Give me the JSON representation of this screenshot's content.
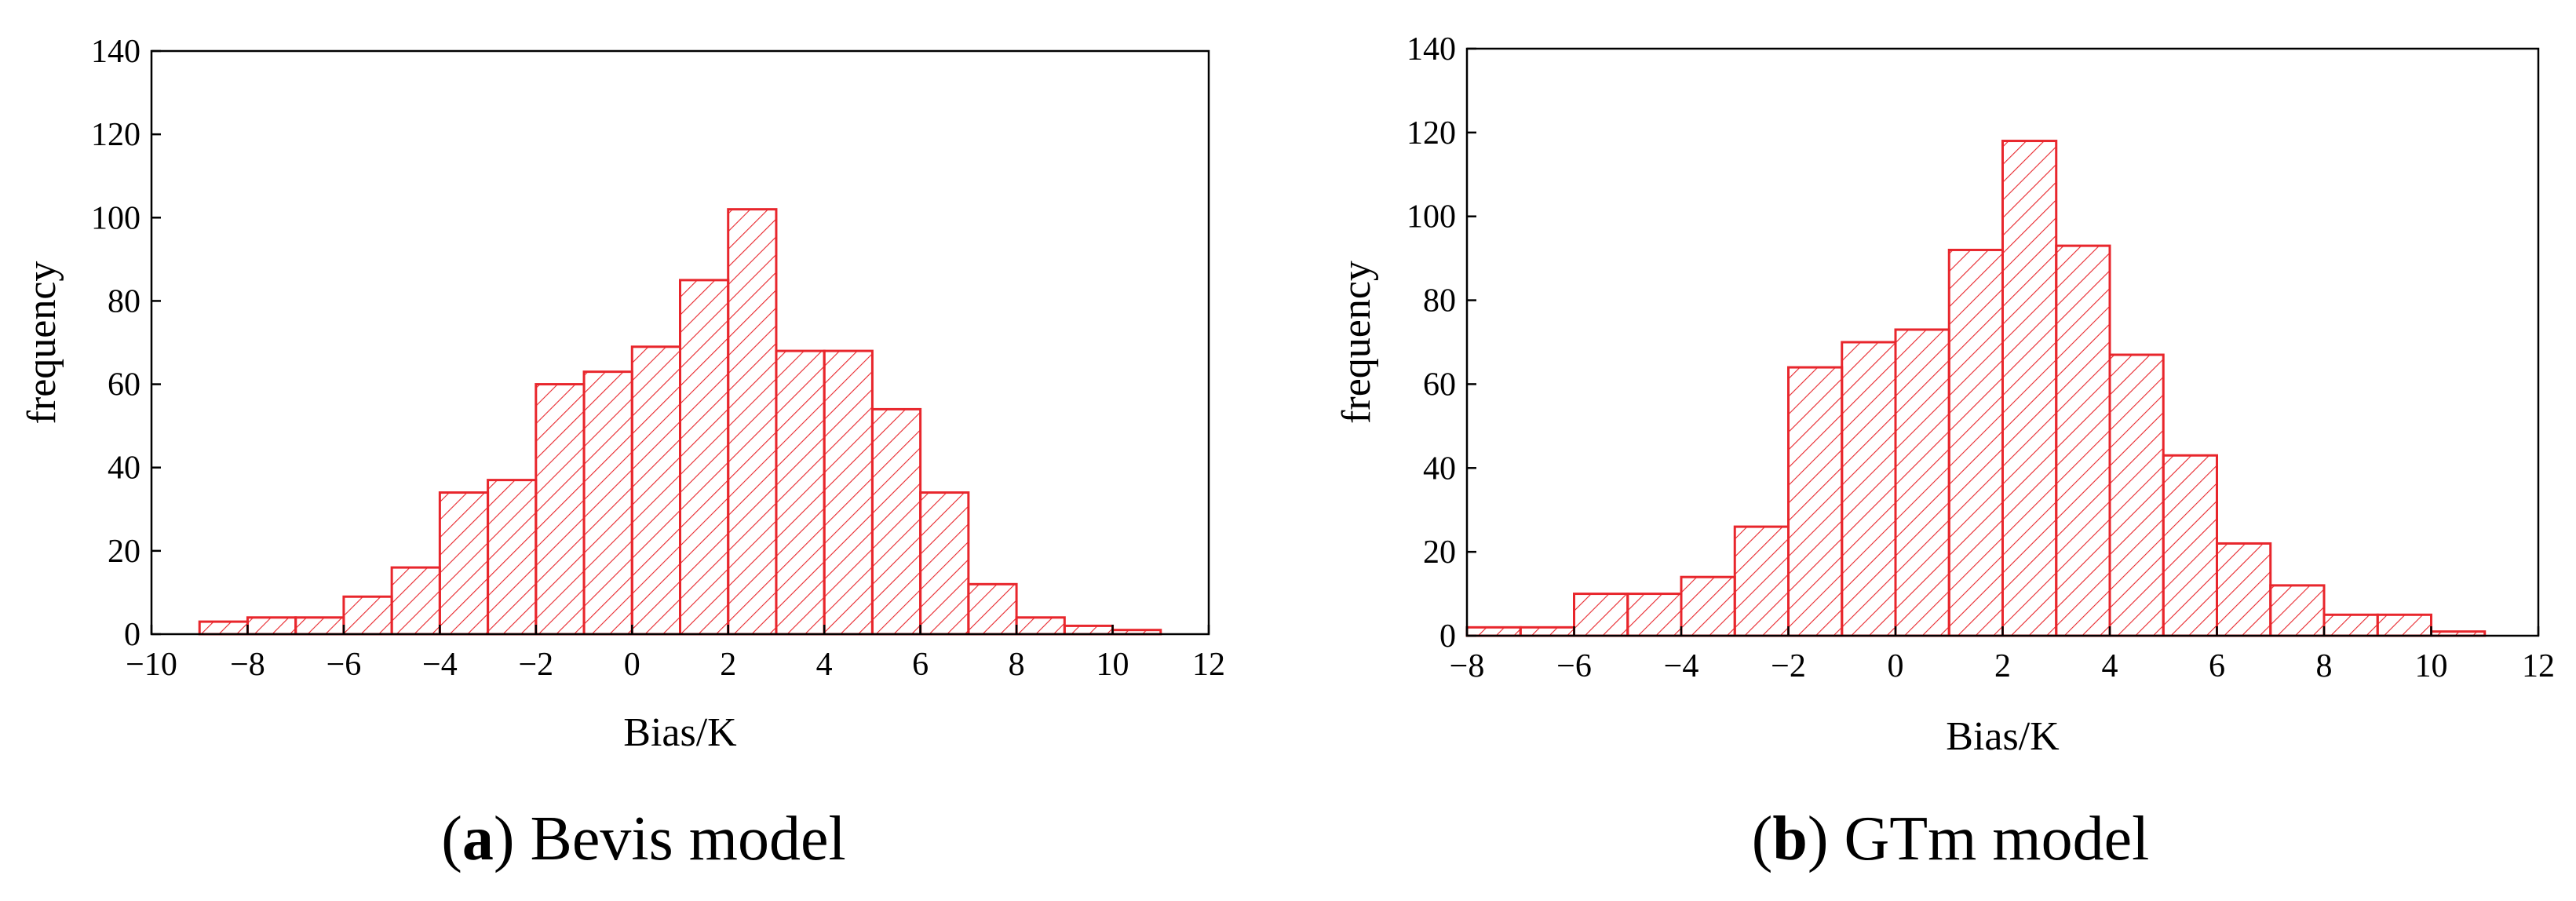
{
  "chart_data": [
    {
      "type": "bar",
      "id": "a",
      "caption_letter": "a",
      "caption_text": "Bevis model",
      "title": "",
      "xlabel": "Bias/K",
      "ylabel": "frequency",
      "xlim": [
        -10,
        12
      ],
      "ylim": [
        0,
        140
      ],
      "xticks": [
        -10,
        -8,
        -6,
        -4,
        -2,
        0,
        2,
        4,
        6,
        8,
        10,
        12
      ],
      "xtick_labels": [
        "−10",
        "−8",
        "−6",
        "−4",
        "−2",
        "0",
        "2",
        "4",
        "6",
        "8",
        "10",
        "12"
      ],
      "yticks": [
        0,
        20,
        40,
        60,
        80,
        100,
        120,
        140
      ],
      "ytick_labels": [
        "0",
        "20",
        "40",
        "60",
        "80",
        "100",
        "120",
        "140"
      ],
      "bin_width": 1,
      "bin_starts": [
        -9,
        -8,
        -7,
        -6,
        -5,
        -4,
        -3,
        -2,
        -1,
        0,
        1,
        2,
        3,
        4,
        5,
        6,
        7,
        8,
        9,
        10
      ],
      "values": [
        3,
        4,
        4,
        9,
        16,
        34,
        37,
        60,
        63,
        69,
        85,
        102,
        68,
        68,
        54,
        34,
        12,
        4,
        2,
        1
      ],
      "color": "#e8262c"
    },
    {
      "type": "bar",
      "id": "b",
      "caption_letter": "b",
      "caption_text": "GTm model",
      "title": "",
      "xlabel": "Bias/K",
      "ylabel": "frequency",
      "xlim": [
        -8,
        12
      ],
      "ylim": [
        0,
        140
      ],
      "xticks": [
        -8,
        -6,
        -4,
        -2,
        0,
        2,
        4,
        6,
        8,
        10,
        12
      ],
      "xtick_labels": [
        "−8",
        "−6",
        "−4",
        "−2",
        "0",
        "2",
        "4",
        "6",
        "8",
        "10",
        "12"
      ],
      "yticks": [
        0,
        20,
        40,
        60,
        80,
        100,
        120,
        140
      ],
      "ytick_labels": [
        "0",
        "20",
        "40",
        "60",
        "80",
        "100",
        "120",
        "140"
      ],
      "bin_width": 1,
      "bin_starts": [
        -8,
        -7,
        -6,
        -5,
        -4,
        -3,
        -2,
        -1,
        0,
        1,
        2,
        3,
        4,
        5,
        6,
        7,
        8,
        9,
        10
      ],
      "values": [
        2,
        2,
        10,
        10,
        14,
        26,
        64,
        70,
        73,
        92,
        118,
        93,
        67,
        43,
        22,
        12,
        5,
        5,
        1
      ],
      "color": "#e8262c"
    }
  ]
}
